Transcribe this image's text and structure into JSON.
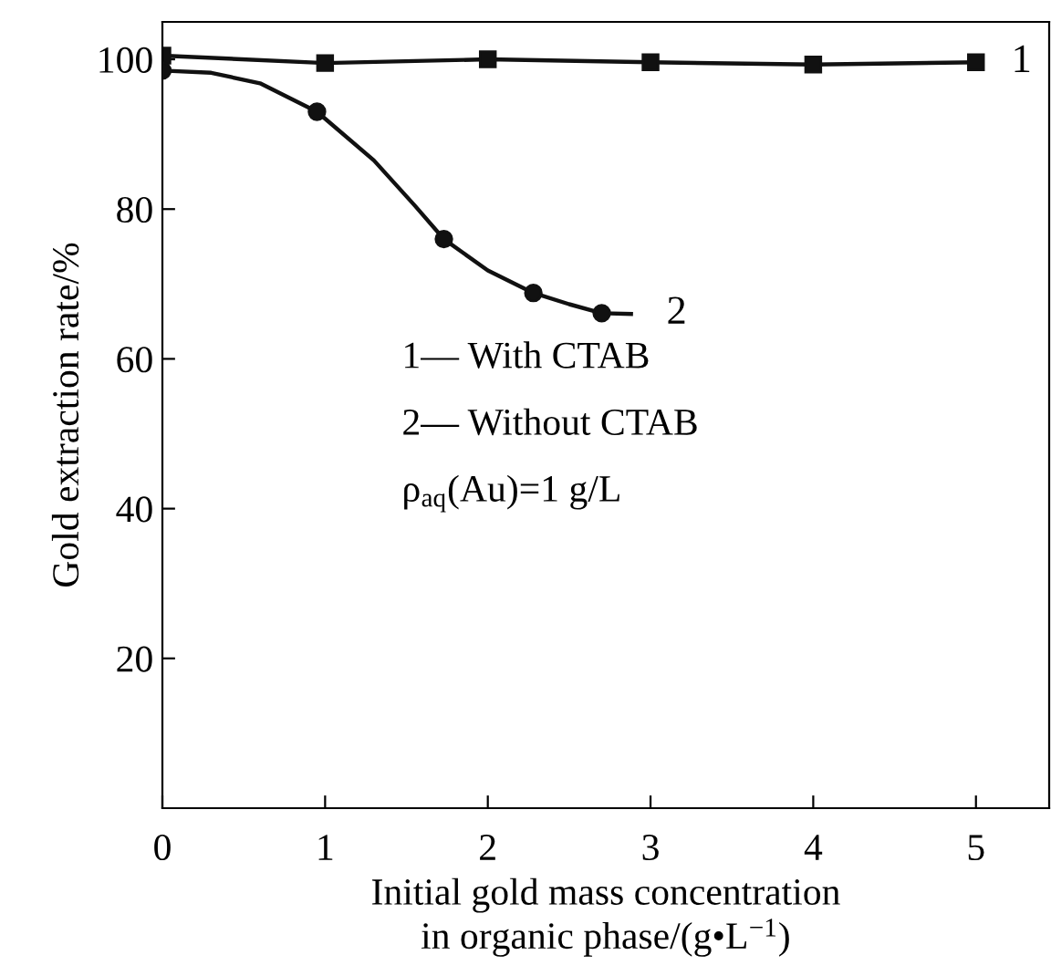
{
  "chart_data": {
    "type": "line",
    "xlabel": "Initial gold mass concentration\nin organic phase/(g•L$^{−1}$)",
    "ylabel": "Gold extraction rate/%",
    "xlim": [
      0,
      5.45
    ],
    "ylim": [
      0,
      105
    ],
    "xticks": [
      0,
      1,
      2,
      3,
      4,
      5
    ],
    "yticks": [
      20,
      40,
      60,
      80,
      100
    ],
    "series": [
      {
        "name": "1",
        "marker": "square",
        "color": "#111111",
        "x": [
          0,
          1,
          2,
          3,
          4,
          5
        ],
        "values": [
          100.5,
          99.5,
          100,
          99.6,
          99.3,
          99.6
        ]
      },
      {
        "type": "scatter",
        "marker": "circle",
        "color": "#111111",
        "x": [
          0,
          0.95,
          1.73,
          2.28,
          2.7
        ],
        "values": [
          98.5,
          93,
          76,
          68.8,
          66.1
        ]
      },
      {
        "name": "2",
        "type": "line",
        "marker": "none",
        "color": "#111111",
        "x": [
          0,
          0.3,
          0.6,
          0.95,
          1.3,
          1.55,
          1.73,
          2.0,
          2.28,
          2.5,
          2.7,
          2.88
        ],
        "values": [
          98.5,
          98.2,
          96.8,
          93,
          86.5,
          80.5,
          76,
          71.8,
          68.8,
          67.3,
          66.1,
          66
        ]
      }
    ],
    "annotations": [
      "1— With CTAB",
      "2— Without CTAB",
      "ρ$_{aq}$(Au)=1 g/L"
    ],
    "grid": false,
    "legend": false
  }
}
